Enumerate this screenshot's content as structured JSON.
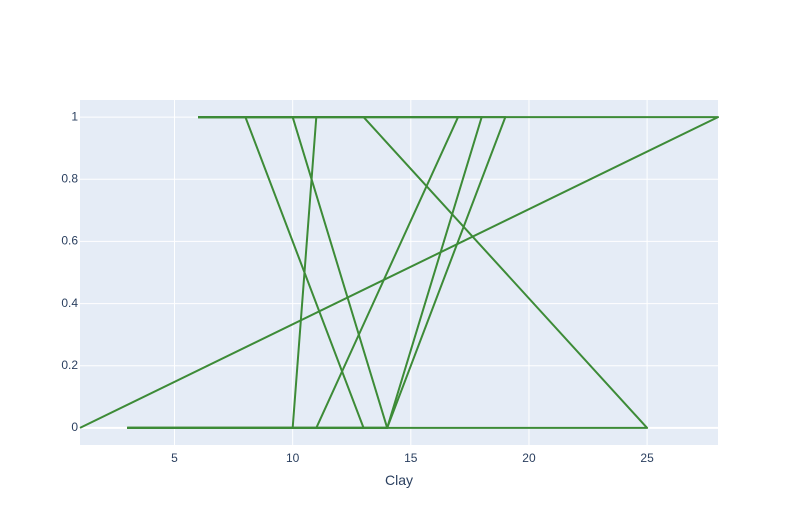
{
  "chart_data": {
    "type": "line",
    "title": "",
    "xlabel": "Clay",
    "ylabel": "",
    "xlim": [
      1,
      28
    ],
    "ylim": [
      -0.055,
      1.055
    ],
    "xticks": [
      5,
      10,
      15,
      20,
      25
    ],
    "yticks": [
      0,
      0.2,
      0.4,
      0.6,
      0.8,
      1
    ],
    "grid": true,
    "line_color": "#3d8b37",
    "plot_bg": "#e5ecf6",
    "grid_color": "#ffffff",
    "series": [
      {
        "x": [
          1,
          28,
          6
        ],
        "y": [
          0,
          1,
          1
        ]
      },
      {
        "x": [
          6,
          8,
          13,
          14,
          3
        ],
        "y": [
          1,
          1,
          0,
          0,
          0
        ]
      },
      {
        "x": [
          3,
          10,
          11,
          6
        ],
        "y": [
          0,
          0,
          1,
          1
        ]
      },
      {
        "x": [
          6,
          10,
          14,
          14,
          3
        ],
        "y": [
          1,
          1,
          0,
          0,
          0
        ]
      },
      {
        "x": [
          3,
          11,
          17,
          6
        ],
        "y": [
          0,
          0,
          1,
          1
        ]
      },
      {
        "x": [
          3,
          14,
          18,
          6
        ],
        "y": [
          0,
          0,
          1,
          1
        ]
      },
      {
        "x": [
          3,
          14,
          19,
          6
        ],
        "y": [
          0,
          0,
          1,
          1
        ]
      },
      {
        "x": [
          6,
          13,
          25,
          3
        ],
        "y": [
          1,
          1,
          0,
          0
        ]
      }
    ]
  }
}
